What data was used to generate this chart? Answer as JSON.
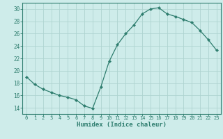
{
  "x": [
    0,
    1,
    2,
    3,
    4,
    5,
    6,
    7,
    8,
    9,
    10,
    11,
    12,
    13,
    14,
    15,
    16,
    17,
    18,
    19,
    20,
    21,
    22,
    23
  ],
  "y": [
    19.0,
    17.8,
    17.0,
    16.5,
    16.0,
    15.7,
    15.3,
    14.3,
    13.9,
    17.4,
    21.5,
    24.2,
    26.0,
    27.4,
    29.2,
    30.0,
    30.2,
    29.2,
    28.8,
    28.3,
    27.8,
    26.5,
    25.0,
    23.3
  ],
  "line_color": "#2e7d6e",
  "marker": "D",
  "marker_size": 2.2,
  "bg_color": "#ceecea",
  "grid_color": "#aed4d0",
  "tick_color": "#2e7d6e",
  "label_color": "#2e7d6e",
  "xlabel": "Humidex (Indice chaleur)",
  "ylim": [
    13,
    31
  ],
  "yticks": [
    14,
    16,
    18,
    20,
    22,
    24,
    26,
    28,
    30
  ],
  "xticks": [
    0,
    1,
    2,
    3,
    4,
    5,
    6,
    7,
    8,
    9,
    10,
    11,
    12,
    13,
    14,
    15,
    16,
    17,
    18,
    19,
    20,
    21,
    22,
    23
  ]
}
